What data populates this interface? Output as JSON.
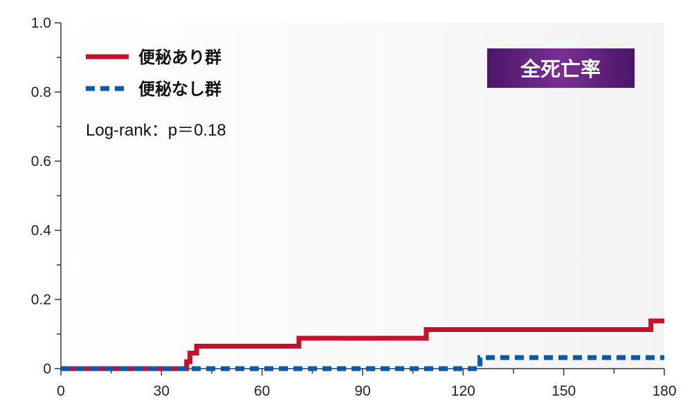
{
  "chart_data": {
    "type": "line",
    "title": "",
    "xlabel": "",
    "ylabel": "",
    "xlim": [
      0,
      180
    ],
    "ylim": [
      0,
      1.0
    ],
    "x_ticks": [
      "0",
      "30",
      "60",
      "90",
      "120",
      "150",
      "180"
    ],
    "x_tick_values": [
      0,
      30,
      60,
      90,
      120,
      150,
      180
    ],
    "y_ticks": [
      "0",
      "0.2",
      "0.4",
      "0.6",
      "0.8",
      "1.0"
    ],
    "y_tick_values": [
      0,
      0.2,
      0.4,
      0.6,
      0.8,
      1.0
    ],
    "grid": false,
    "legend_position": "top-left",
    "badge": "全死亡率",
    "annotation": "Log-rank：p＝0.18",
    "series": [
      {
        "name": "便秘あり群",
        "color": "#c8102e",
        "style": "solid",
        "x": [
          0,
          37.5,
          37.5,
          38.5,
          38.5,
          40.5,
          40.5,
          71,
          71,
          109,
          109,
          176,
          176,
          180
        ],
        "y": [
          0,
          0,
          0.02,
          0.02,
          0.045,
          0.045,
          0.065,
          0.065,
          0.088,
          0.088,
          0.113,
          0.113,
          0.138,
          0.138
        ]
      },
      {
        "name": "便秘なし群",
        "color": "#005bac",
        "style": "dashed",
        "x": [
          0,
          125,
          125,
          180
        ],
        "y": [
          0,
          0,
          0.032,
          0.032
        ]
      }
    ]
  }
}
